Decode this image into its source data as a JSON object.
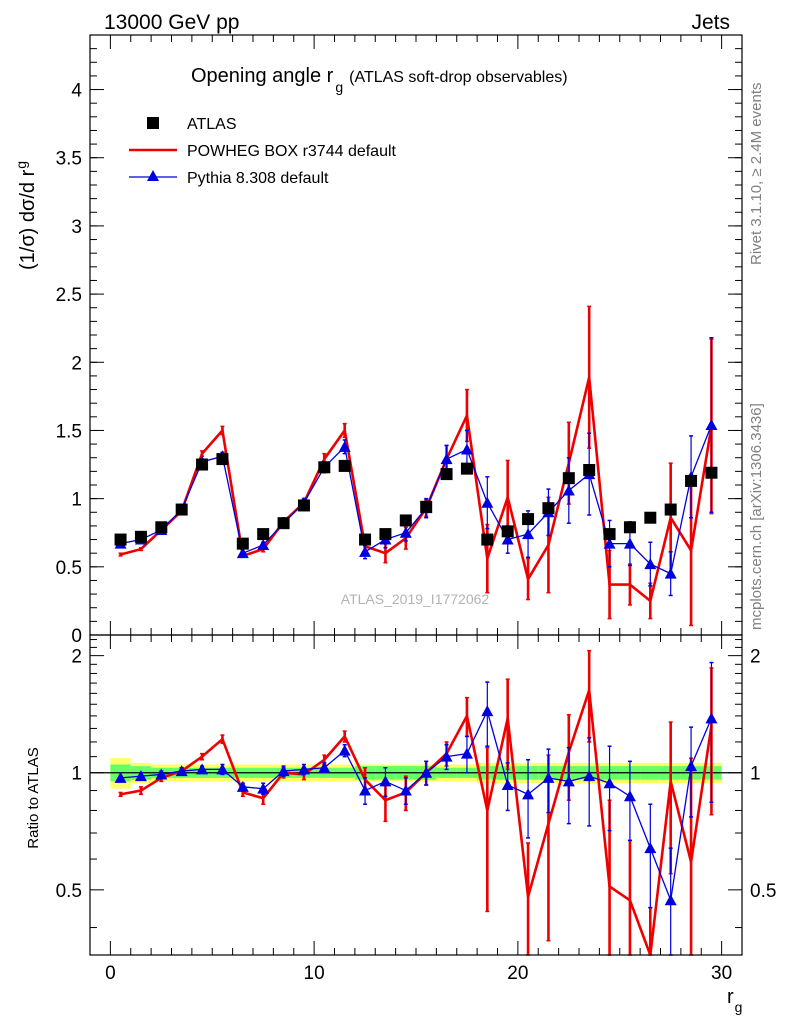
{
  "header": {
    "left": "13000 GeV pp",
    "right": "Jets"
  },
  "side_labels": {
    "rivet": "Rivet 3.1.10, ≥ 2.4M events",
    "mcplots": "mcplots.cern.ch [arXiv:1306.3436]"
  },
  "watermark": "ATLAS_2019_I1772062",
  "chart_data": [
    {
      "type": "scatter",
      "title": "Opening angle r",
      "title_sub": "g",
      "title_note": "(ATLAS soft-drop observables)",
      "ylabel": "(1/σ) dσ/d r",
      "ylabel_sub": "g",
      "xlim": [
        -1,
        31
      ],
      "ylim": [
        0,
        4.4
      ],
      "yticks": [
        "0",
        "0.5",
        "1",
        "1.5",
        "2",
        "2.5",
        "3",
        "3.5",
        "4"
      ],
      "legend_position": "top-left",
      "x": [
        0.5,
        1.5,
        2.5,
        3.5,
        4.5,
        5.5,
        6.5,
        7.5,
        8.5,
        9.5,
        10.5,
        11.5,
        12.5,
        13.5,
        14.5,
        15.5,
        16.5,
        17.5,
        18.5,
        19.5,
        20.5,
        21.5,
        22.5,
        23.5,
        24.5,
        25.5,
        26.5,
        27.5,
        28.5,
        29.5
      ],
      "series": [
        {
          "name": "ATLAS",
          "color": "#000000",
          "marker": "square",
          "values": [
            0.7,
            0.72,
            0.79,
            0.92,
            1.25,
            1.29,
            0.67,
            0.74,
            0.82,
            0.95,
            1.23,
            1.24,
            0.7,
            0.74,
            0.84,
            0.94,
            1.18,
            1.22,
            0.7,
            0.76,
            0.85,
            0.93,
            1.15,
            1.21,
            0.74,
            0.79,
            0.86,
            0.92,
            1.13,
            1.19
          ]
        },
        {
          "name": "POWHEG BOX r3744 default",
          "color": "#ee0000",
          "marker": "line",
          "values": [
            0.59,
            0.63,
            0.77,
            0.91,
            1.33,
            1.5,
            0.58,
            0.63,
            0.83,
            0.97,
            1.29,
            1.5,
            0.65,
            0.6,
            0.71,
            0.93,
            1.29,
            1.61,
            0.56,
            1.01,
            0.41,
            0.66,
            1.26,
            1.89,
            0.37,
            0.37,
            0.25,
            0.86,
            0.62,
            1.53
          ],
          "errors": [
            0.01,
            0.01,
            0.01,
            0.01,
            0.02,
            0.03,
            0.01,
            0.02,
            0.03,
            0.03,
            0.04,
            0.05,
            0.05,
            0.07,
            0.08,
            0.06,
            0.1,
            0.19,
            0.25,
            0.27,
            0.15,
            0.35,
            0.3,
            0.52,
            0.25,
            0.15,
            0.13,
            0.4,
            0.55,
            0.64
          ]
        },
        {
          "name": "Pythia 8.308 default",
          "color": "#0000dd",
          "marker": "triangle",
          "values": [
            0.67,
            0.7,
            0.77,
            0.92,
            1.27,
            1.31,
            0.6,
            0.66,
            0.82,
            0.97,
            1.23,
            1.38,
            0.61,
            0.7,
            0.75,
            0.93,
            1.29,
            1.36,
            0.97,
            0.7,
            0.74,
            0.9,
            1.06,
            1.18,
            0.67,
            0.67,
            0.52,
            0.45,
            1.16,
            1.54
          ],
          "errors": [
            0.01,
            0.01,
            0.01,
            0.01,
            0.02,
            0.03,
            0.01,
            0.02,
            0.03,
            0.03,
            0.04,
            0.05,
            0.05,
            0.06,
            0.06,
            0.07,
            0.1,
            0.14,
            0.19,
            0.1,
            0.17,
            0.17,
            0.24,
            0.3,
            0.17,
            0.16,
            0.16,
            0.16,
            0.3,
            0.64
          ]
        }
      ]
    },
    {
      "type": "line",
      "ylabel": "Ratio to ATLAS",
      "xlabel": "r",
      "xlabel_sub": "g",
      "xlim": [
        -1,
        31
      ],
      "ylim": [
        0.34,
        2.26
      ],
      "yticks": [
        "0.5",
        "1",
        "2"
      ],
      "xticks": [
        "0",
        "10",
        "20",
        "30"
      ],
      "reference_line": 1,
      "band_color_inner": "#66ff66",
      "band_color_outer": "#ffff66",
      "x": [
        0.5,
        1.5,
        2.5,
        3.5,
        4.5,
        5.5,
        6.5,
        7.5,
        8.5,
        9.5,
        10.5,
        11.5,
        12.5,
        13.5,
        14.5,
        15.5,
        16.5,
        17.5,
        18.5,
        19.5,
        20.5,
        21.5,
        22.5,
        23.5,
        24.5,
        25.5,
        26.5,
        27.5,
        28.5,
        29.5
      ],
      "band_inner": [
        0.05,
        0.04,
        0.03,
        0.03,
        0.03,
        0.03,
        0.03,
        0.03,
        0.03,
        0.03,
        0.03,
        0.03,
        0.04,
        0.04,
        0.04,
        0.04,
        0.03,
        0.03,
        0.04,
        0.04,
        0.04,
        0.04,
        0.04,
        0.04,
        0.04,
        0.04,
        0.04,
        0.04,
        0.04,
        0.04
      ],
      "band_outer": [
        0.09,
        0.06,
        0.05,
        0.05,
        0.05,
        0.05,
        0.05,
        0.05,
        0.05,
        0.05,
        0.05,
        0.05,
        0.05,
        0.05,
        0.05,
        0.05,
        0.05,
        0.05,
        0.06,
        0.06,
        0.06,
        0.06,
        0.06,
        0.06,
        0.06,
        0.06,
        0.06,
        0.06,
        0.06,
        0.06
      ],
      "series": [
        {
          "name": "POWHEG BOX r3744 default",
          "color": "#ee0000",
          "values": [
            0.88,
            0.9,
            0.97,
            1.01,
            1.1,
            1.22,
            0.89,
            0.86,
            1.0,
            0.99,
            1.08,
            1.24,
            0.96,
            0.85,
            0.89,
            1.0,
            1.12,
            1.4,
            0.8,
            1.38,
            0.48,
            0.74,
            1.13,
            1.63,
            0.51,
            0.47,
            0.3,
            0.95,
            0.59,
            1.32
          ],
          "errors": [
            0.01,
            0.02,
            0.02,
            0.02,
            0.02,
            0.03,
            0.02,
            0.03,
            0.03,
            0.03,
            0.03,
            0.04,
            0.07,
            0.1,
            0.09,
            0.07,
            0.08,
            0.16,
            0.36,
            0.36,
            0.18,
            0.37,
            0.28,
            0.43,
            0.34,
            0.2,
            0.15,
            0.4,
            0.5,
            0.54
          ]
        },
        {
          "name": "Pythia 8.308 default",
          "color": "#0000dd",
          "values": [
            0.97,
            0.98,
            0.99,
            1.01,
            1.02,
            1.02,
            0.92,
            0.91,
            1.01,
            1.02,
            1.03,
            1.14,
            0.9,
            0.95,
            0.9,
            1.0,
            1.1,
            1.12,
            1.44,
            0.93,
            0.88,
            0.97,
            0.95,
            0.98,
            0.94,
            0.87,
            0.64,
            0.47,
            1.04,
            1.38
          ],
          "errors": [
            0.01,
            0.02,
            0.02,
            0.02,
            0.02,
            0.03,
            0.02,
            0.03,
            0.03,
            0.03,
            0.03,
            0.04,
            0.07,
            0.08,
            0.07,
            0.07,
            0.08,
            0.12,
            0.27,
            0.13,
            0.2,
            0.18,
            0.21,
            0.25,
            0.23,
            0.2,
            0.19,
            0.17,
            0.27,
            0.54
          ]
        }
      ]
    }
  ]
}
